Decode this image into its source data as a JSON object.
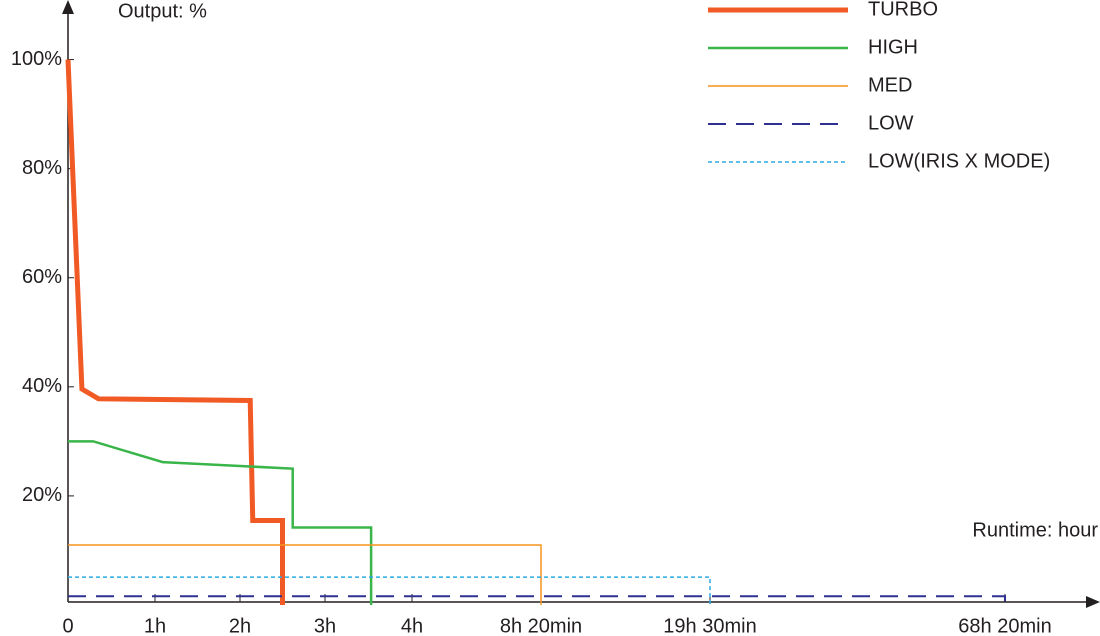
{
  "chart_data": {
    "type": "line",
    "title": "Output: %",
    "x_label": "Runtime: hour",
    "xticks": [
      {
        "value": 0,
        "label": "0"
      },
      {
        "value": 1,
        "label": "1h"
      },
      {
        "value": 2,
        "label": "2h"
      },
      {
        "value": 3,
        "label": "3h"
      },
      {
        "value": 4,
        "label": "4h"
      },
      {
        "value": 8.333,
        "label": "8h 20min"
      },
      {
        "value": 19.5,
        "label": "19h 30min"
      },
      {
        "value": 68.333,
        "label": "68h 20min"
      }
    ],
    "ylim": [
      0,
      110
    ],
    "yticks": [
      {
        "value": 20,
        "label": "20%"
      },
      {
        "value": 40,
        "label": "40%"
      },
      {
        "value": 60,
        "label": "60%"
      },
      {
        "value": 80,
        "label": "80%"
      },
      {
        "value": 100,
        "label": "100%"
      }
    ],
    "series": [
      {
        "name": "TURBO",
        "color": "#f15a24",
        "width": 5,
        "dash": "none",
        "x": [
          0,
          0.16,
          0.35,
          2.12,
          2.15,
          2.5,
          2.5
        ],
        "values": [
          100,
          39.6,
          37.8,
          37.5,
          15.5,
          15.5,
          0
        ]
      },
      {
        "name": "HIGH",
        "color": "#39b54a",
        "width": 2.5,
        "dash": "none",
        "x": [
          0,
          0.29,
          1.09,
          2.62,
          2.62,
          3.53,
          3.53
        ],
        "values": [
          30,
          30,
          26.2,
          25,
          14.2,
          14.2,
          0
        ]
      },
      {
        "name": "MED",
        "color": "#f7931e",
        "width": 1.5,
        "dash": "none",
        "x": [
          0,
          8.333,
          8.333
        ],
        "values": [
          11,
          11,
          0
        ]
      },
      {
        "name": "LOW",
        "color": "#2e3192",
        "width": 2,
        "dash": "18,10",
        "x": [
          0,
          68.333,
          68.333
        ],
        "values": [
          1.6,
          1.6,
          0
        ]
      },
      {
        "name": "LOW(IRIS X MODE)",
        "color": "#29abe2",
        "width": 1.5,
        "dash": "4,3",
        "x": [
          0,
          19.5,
          19.5
        ],
        "values": [
          5.1,
          5.1,
          0
        ]
      }
    ]
  }
}
